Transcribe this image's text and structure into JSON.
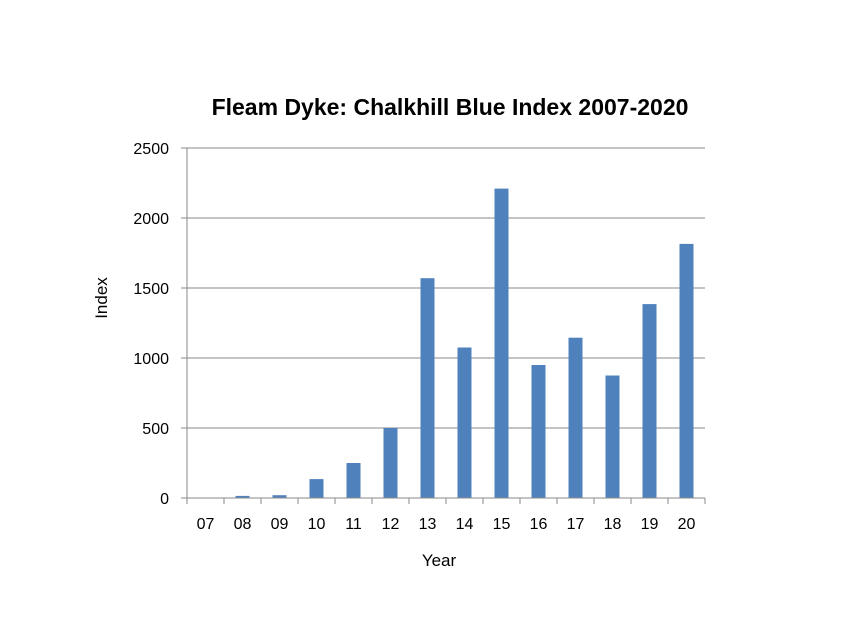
{
  "chart_data": {
    "type": "bar",
    "title": "Fleam Dyke:  Chalkhill Blue Index 2007-2020",
    "xlabel": "Year",
    "ylabel": "Index",
    "categories": [
      "07",
      "08",
      "09",
      "10",
      "11",
      "12",
      "13",
      "14",
      "15",
      "16",
      "17",
      "18",
      "19",
      "20"
    ],
    "values": [
      0,
      15,
      20,
      135,
      250,
      500,
      1570,
      1075,
      2210,
      950,
      1145,
      875,
      1385,
      1815
    ],
    "ylim": [
      0,
      2500
    ],
    "yticks": [
      "0",
      "500",
      "1000",
      "1500",
      "2000",
      "2500"
    ],
    "grid": true,
    "legend": "none",
    "bar_color": "#4f81bd"
  }
}
